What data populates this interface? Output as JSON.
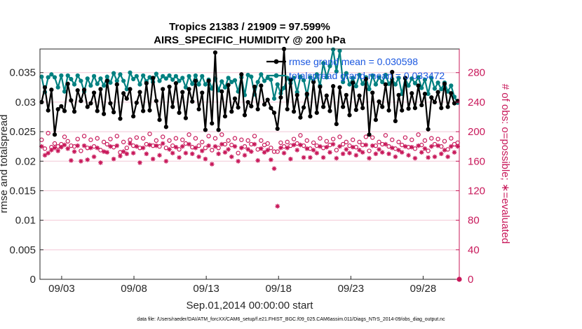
{
  "chart_data": {
    "type": "line",
    "title_line1": "Tropics 21383 / 21909 = 97.599%",
    "title_line2": "AIRS_SPECIFIC_HUMIDITY @ 200 hPa",
    "xlabel": "Sep.01,2014 00:00:00 start",
    "ylabel_left": "rmse and totalspread",
    "ylabel_right": "# of obs: o=possible; ∗=evaluated",
    "footer": "data file: /Users/raeder/DAI/ATM_forcXX/CAM6_setup/f.e21.FHIST_BGC.f09_025.CAM6assim.011/Diags_NTrS_2014-09/obs_diag_output.nc",
    "x_tick_labels": [
      "09/03",
      "09/08",
      "09/13",
      "09/18",
      "09/23",
      "09/28"
    ],
    "x_tick_days": [
      3,
      8,
      13,
      18,
      23,
      28
    ],
    "xlim_days": [
      1.5,
      30.5
    ],
    "ylim_left": [
      0,
      0.039
    ],
    "yticks_left": [
      "0",
      "0.005",
      "0.01",
      "0.015",
      "0.02",
      "0.025",
      "0.03",
      "0.035"
    ],
    "yticks_left_values": [
      0,
      0.005,
      0.01,
      0.015,
      0.02,
      0.025,
      0.03,
      0.035
    ],
    "ylim_right": [
      0,
      312
    ],
    "yticks_right": [
      "0",
      "40",
      "80",
      "120",
      "160",
      "200",
      "240",
      "280"
    ],
    "yticks_right_values": [
      0,
      40,
      80,
      120,
      160,
      200,
      240,
      280
    ],
    "grid": "right-axis horizontal lines",
    "legend_position": "top-right",
    "colors": {
      "rmse": "#000000",
      "totalspread": "#008080",
      "obs": "#c8185a",
      "legend_text": "#1a57e0",
      "grid": "#f2c8d6"
    },
    "series": [
      {
        "name": "rmse",
        "legend": "rmse grand mean = 0.030598",
        "axis": "left",
        "values": [
          0.03,
          0.0325,
          0.0286,
          0.0321,
          0.0245,
          0.0288,
          0.0293,
          0.0285,
          0.0331,
          0.0303,
          0.0284,
          0.032,
          0.0302,
          0.0321,
          0.0292,
          0.0298,
          0.0316,
          0.0285,
          0.0322,
          0.028,
          0.0336,
          0.0298,
          0.0283,
          0.033,
          0.0272,
          0.0315,
          0.0306,
          0.0322,
          0.0276,
          0.0299,
          0.0317,
          0.0285,
          0.0332,
          0.0286,
          0.0341,
          0.0302,
          0.027,
          0.0322,
          0.0258,
          0.0326,
          0.0292,
          0.0332,
          0.0282,
          0.0317,
          0.0273,
          0.0322,
          0.0301,
          0.0336,
          0.0288,
          0.0316,
          0.0253,
          0.0336,
          0.0264,
          0.0384,
          0.0253,
          0.0318,
          0.0276,
          0.0329,
          0.0284,
          0.0306,
          0.0291,
          0.0347,
          0.0278,
          0.03,
          0.0293,
          0.0326,
          0.0288,
          0.0328,
          0.0296,
          0.0304,
          0.029,
          0.0282,
          0.0255,
          0.0308,
          0.039,
          0.0288,
          0.0338,
          0.0284,
          0.0312,
          0.0274,
          0.0291,
          0.0314,
          0.0276,
          0.0334,
          0.0282,
          0.0326,
          0.0292,
          0.0311,
          0.0285,
          0.0327,
          0.0263,
          0.0325,
          0.0292,
          0.0312,
          0.0278,
          0.0333,
          0.0287,
          0.0311,
          0.029,
          0.0339,
          0.0245,
          0.0316,
          0.027,
          0.0301,
          0.0292,
          0.033,
          0.0286,
          0.0351,
          0.0268,
          0.0312,
          0.0286,
          0.0341,
          0.0289,
          0.0315,
          0.029,
          0.0328,
          0.0295,
          0.0314,
          0.0254,
          0.0308,
          0.03,
          0.0317,
          0.029,
          0.0331,
          0.0292,
          0.0315,
          0.0298,
          0.0302
        ]
      },
      {
        "name": "totalspread",
        "legend": "totalspread grand mean = 0.033472",
        "axis": "left",
        "values": [
          0.0343,
          0.0317,
          0.0342,
          0.0347,
          0.0342,
          0.0325,
          0.0345,
          0.0318,
          0.0345,
          0.0339,
          0.033,
          0.0345,
          0.0336,
          0.0318,
          0.034,
          0.0328,
          0.0344,
          0.0331,
          0.034,
          0.0328,
          0.0343,
          0.0333,
          0.0349,
          0.0336,
          0.0347,
          0.0336,
          0.0322,
          0.035,
          0.0339,
          0.0344,
          0.033,
          0.0345,
          0.0335,
          0.0342,
          0.0334,
          0.0348,
          0.0336,
          0.0344,
          0.034,
          0.0345,
          0.0338,
          0.0344,
          0.0336,
          0.0341,
          0.0325,
          0.0344,
          0.0331,
          0.0345,
          0.033,
          0.0344,
          0.033,
          0.0338,
          0.0323,
          0.034,
          0.032,
          0.0335,
          0.0325,
          0.0341,
          0.0334,
          0.0337,
          0.0318,
          0.0342,
          0.0312,
          0.0346,
          0.0343,
          0.0313,
          0.0334,
          0.0347,
          0.0336,
          0.0341,
          0.0338,
          0.0306,
          0.033,
          0.0315,
          0.0324,
          0.0341,
          0.0332,
          0.0341,
          0.0317,
          0.0343,
          0.0337,
          0.0312,
          0.0342,
          0.0335,
          0.0347,
          0.0328,
          0.0366,
          0.0342,
          0.0361,
          0.0389,
          0.0352,
          0.0387,
          0.0334,
          0.0349,
          0.033,
          0.0341,
          0.0327,
          0.0346,
          0.0331,
          0.0342,
          0.0322,
          0.0345,
          0.033,
          0.0342,
          0.0334,
          0.0346,
          0.0331,
          0.0339,
          0.033,
          0.0341,
          0.0314,
          0.034,
          0.0328,
          0.034,
          0.0332,
          0.0342,
          0.0324,
          0.0338,
          0.0314,
          0.0341,
          0.0323,
          0.0333,
          0.0322,
          0.0333,
          0.0318,
          0.0328,
          0.0309,
          0.0299
        ]
      },
      {
        "name": "# of obs possible",
        "marker": "o",
        "axis": "right",
        "values": [
          189,
          177,
          198,
          179,
          184,
          180,
          183,
          193,
          187,
          181,
          180,
          190,
          174,
          194,
          178,
          189,
          180,
          191,
          175,
          186,
          183,
          190,
          179,
          194,
          172,
          186,
          178,
          189,
          181,
          192,
          178,
          191,
          183,
          197,
          181,
          188,
          180,
          193,
          178,
          188,
          181,
          191,
          176,
          189,
          184,
          196,
          179,
          191,
          181,
          186,
          178,
          194,
          175,
          191,
          178,
          196,
          183,
          188,
          182,
          191,
          171,
          189,
          180,
          188,
          183,
          194,
          176,
          188,
          182,
          184,
          178,
          173,
          173,
          185,
          180,
          186,
          181,
          190,
          184,
          195,
          181,
          188,
          177,
          185,
          181,
          191,
          178,
          187,
          182,
          190,
          175,
          193,
          183,
          186,
          181,
          189,
          179,
          186,
          182,
          193,
          174,
          192,
          181,
          186,
          183,
          195,
          180,
          189,
          177,
          186,
          182,
          192,
          179,
          189,
          177,
          196,
          182,
          188,
          174,
          191,
          183,
          190,
          180,
          187,
          176,
          191,
          183,
          185
        ]
      },
      {
        "name": "# of obs evaluated",
        "marker": "*",
        "axis": "right",
        "values": [
          180,
          168,
          171,
          175,
          178,
          174,
          179,
          182,
          177,
          161,
          173,
          181,
          160,
          181,
          162,
          178,
          166,
          178,
          158,
          173,
          172,
          180,
          163,
          181,
          167,
          173,
          170,
          184,
          171,
          180,
          158,
          178,
          170,
          182,
          163,
          181,
          168,
          184,
          160,
          176,
          171,
          179,
          165,
          180,
          171,
          183,
          170,
          178,
          166,
          174,
          163,
          181,
          156,
          180,
          170,
          183,
          172,
          176,
          166,
          180,
          160,
          178,
          168,
          176,
          173,
          183,
          161,
          177,
          172,
          175,
          162,
          150,
          99,
          178,
          171,
          178,
          163,
          182,
          175,
          182,
          165,
          177,
          165,
          175,
          171,
          180,
          165,
          179,
          172,
          183,
          164,
          180,
          170,
          176,
          171,
          179,
          168,
          175,
          172,
          182,
          164,
          181,
          170,
          176,
          172,
          183,
          170,
          178,
          166,
          175,
          172,
          180,
          168,
          179,
          164,
          181,
          172,
          177,
          165,
          180,
          166,
          181,
          170,
          175,
          166,
          180,
          172,
          180
        ]
      }
    ],
    "anchor_marker": {
      "name": "end-point marker",
      "day": 30.5,
      "value": 0,
      "axis": "right"
    }
  }
}
